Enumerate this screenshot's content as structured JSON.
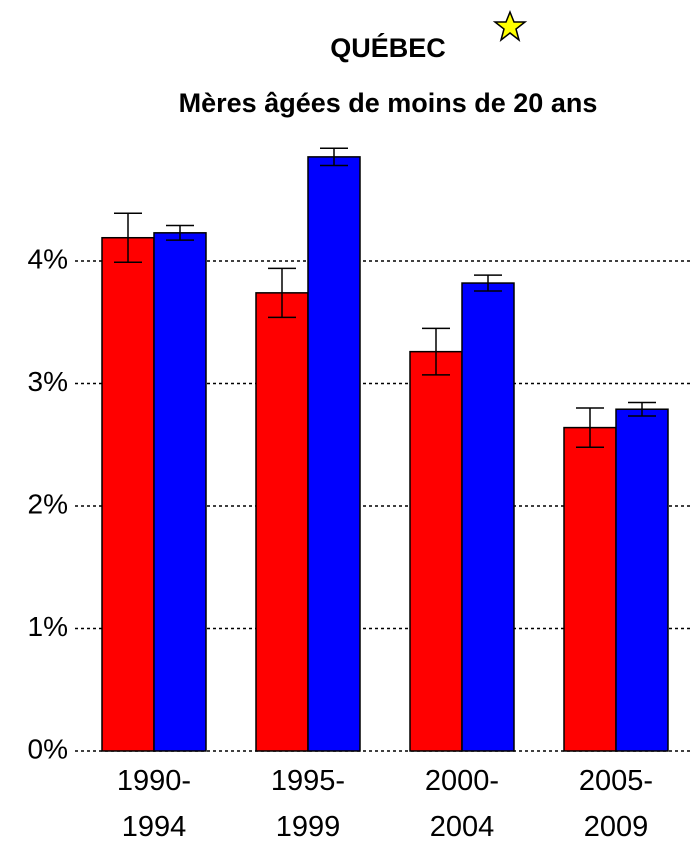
{
  "chart_data": {
    "type": "bar",
    "title": "QUÉBEC",
    "subtitle": "Mères âgées de moins de 20 ans",
    "categories": [
      "1990-1994",
      "1995-1999",
      "2000-2004",
      "2005-2009"
    ],
    "series": [
      {
        "color": "#ff0000",
        "values": [
          4.19,
          3.74,
          3.26,
          2.64
        ],
        "errors": [
          0.2,
          0.2,
          0.19,
          0.16
        ]
      },
      {
        "color": "#0000ff",
        "values": [
          4.23,
          4.85,
          3.82,
          2.79
        ],
        "errors": [
          0.06,
          0.07,
          0.065,
          0.055
        ]
      }
    ],
    "ylim": [
      0,
      5
    ],
    "yticks": [
      {
        "value": 0,
        "label": "0%"
      },
      {
        "value": 1,
        "label": "1%"
      },
      {
        "value": 2,
        "label": "2%"
      },
      {
        "value": 3,
        "label": "3%"
      },
      {
        "value": 4,
        "label": "4%"
      }
    ],
    "grid": true
  }
}
